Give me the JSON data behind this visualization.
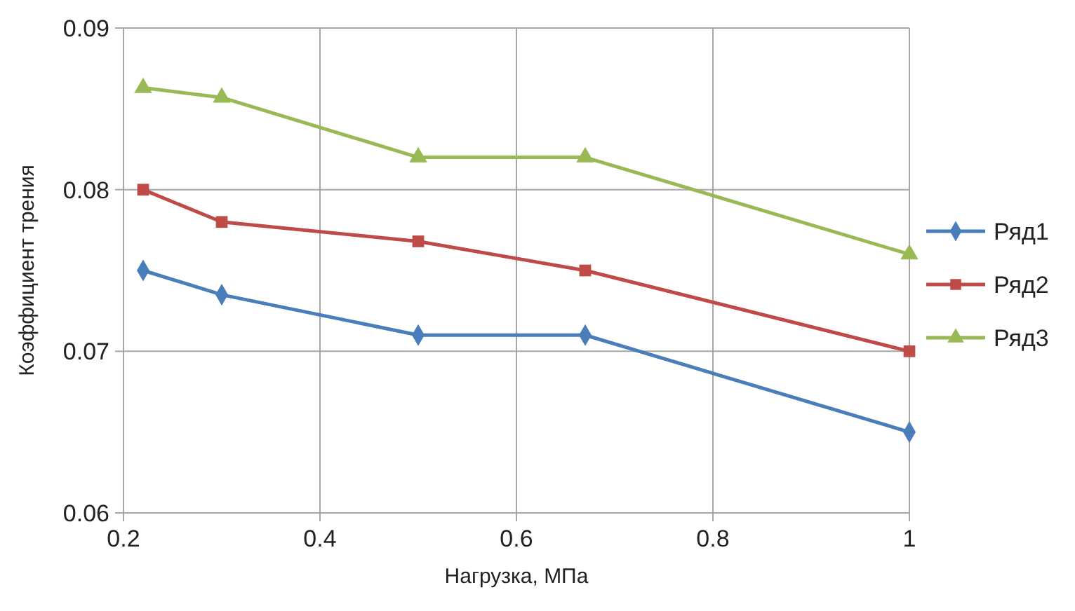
{
  "chart_data": {
    "type": "line",
    "xlabel": "Нагрузка, МПа",
    "ylabel": "Коэффициент трения",
    "x": [
      0.22,
      0.3,
      0.5,
      0.67,
      1
    ],
    "series": [
      {
        "name": "Ряд1",
        "color": "#4a7ebb",
        "marker": "diamond",
        "values": [
          0.075,
          0.0735,
          0.071,
          0.071,
          0.065
        ]
      },
      {
        "name": "Ряд2",
        "color": "#be4b48",
        "marker": "square",
        "values": [
          0.08,
          0.078,
          0.0768,
          0.075,
          0.07
        ]
      },
      {
        "name": "Ряд3",
        "color": "#98b954",
        "marker": "triangle",
        "values": [
          0.0863,
          0.0857,
          0.082,
          0.082,
          0.076
        ]
      }
    ],
    "xlim": [
      0.2,
      1
    ],
    "xticks": [
      0.2,
      0.4,
      0.6,
      0.8,
      1
    ],
    "ylim": [
      0.06,
      0.09
    ],
    "yticks": [
      {
        "value": 0.06,
        "label": "0.06"
      },
      {
        "value": 0.07,
        "label": "0.07"
      },
      {
        "value": 0.08,
        "label": "0.08"
      },
      {
        "value": 0.09,
        "label": "0.09"
      }
    ],
    "grid": true,
    "legend": "right"
  }
}
